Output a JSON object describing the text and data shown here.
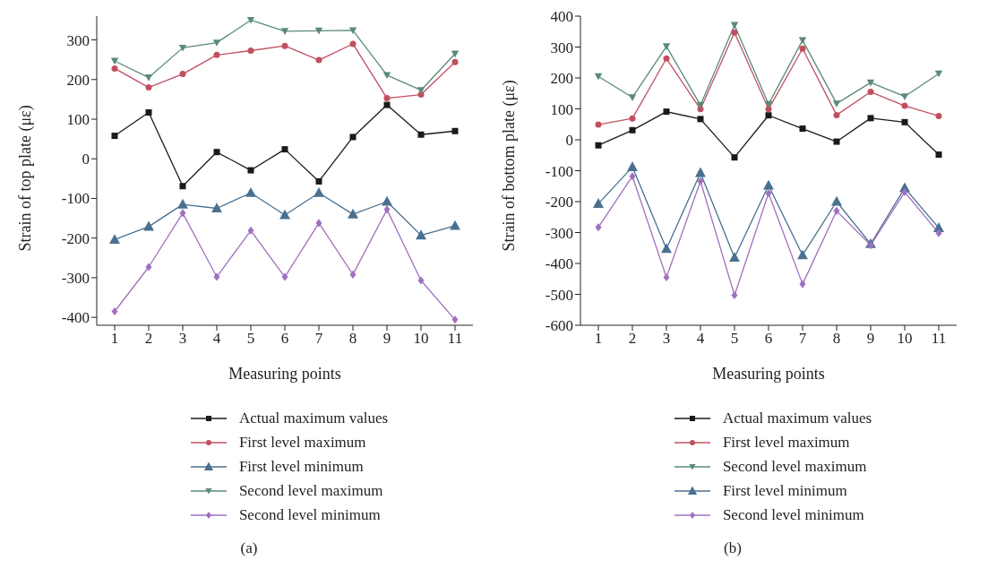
{
  "chart_data": [
    {
      "type": "line",
      "xlabel": "Measuring points",
      "ylabel": "Strain of top plate (με)",
      "categories": [
        "1",
        "2",
        "3",
        "4",
        "5",
        "6",
        "7",
        "8",
        "9",
        "10",
        "11"
      ],
      "ylim": [
        -420,
        360
      ],
      "yticks": [
        -400,
        -300,
        -200,
        -100,
        0,
        100,
        200,
        300
      ],
      "grid": false,
      "legend": "bottom",
      "annotations": [
        "(a)"
      ],
      "series": [
        {
          "name": "Actual maximum values",
          "color": "#1a1a1a",
          "marker": "square",
          "values": [
            58,
            117,
            -69,
            17,
            -29,
            24,
            -57,
            55,
            136,
            61,
            70
          ]
        },
        {
          "name": "First level maximum",
          "color": "#c0505f",
          "marker": "circle",
          "values": [
            228,
            180,
            214,
            262,
            273,
            285,
            249,
            290,
            153,
            162,
            244
          ]
        },
        {
          "name": "First level minimum",
          "color": "#4a7090",
          "marker": "triangle",
          "values": [
            -204,
            -171,
            -115,
            -125,
            -86,
            -142,
            -86,
            -140,
            -108,
            -193,
            -169
          ]
        },
        {
          "name": "Second level maximum",
          "color": "#5a8a78",
          "marker": "triangle-down",
          "values": [
            247,
            205,
            280,
            293,
            350,
            322,
            323,
            324,
            211,
            173,
            265
          ]
        },
        {
          "name": "Second level minimum",
          "color": "#a070c0",
          "marker": "diamond",
          "values": [
            -385,
            -273,
            -137,
            -298,
            -181,
            -298,
            -162,
            -292,
            -128,
            -307,
            -406
          ]
        }
      ]
    },
    {
      "type": "line",
      "xlabel": "Measuring points",
      "ylabel": "Strain of bottom plate (με)",
      "categories": [
        "1",
        "2",
        "3",
        "4",
        "5",
        "6",
        "7",
        "8",
        "9",
        "10",
        "11"
      ],
      "ylim": [
        -600,
        400
      ],
      "yticks": [
        -600,
        -500,
        -400,
        -300,
        -200,
        -100,
        0,
        100,
        200,
        300,
        400
      ],
      "grid": false,
      "legend": "bottom",
      "annotations": [
        "(b)"
      ],
      "series": [
        {
          "name": "Actual maximum values",
          "color": "#1a1a1a",
          "marker": "square",
          "values": [
            -18,
            31,
            91,
            67,
            -57,
            79,
            36,
            -6,
            70,
            57,
            -48
          ]
        },
        {
          "name": "First level maximum",
          "color": "#c0505f",
          "marker": "circle",
          "values": [
            49,
            69,
            263,
            99,
            347,
            99,
            295,
            80,
            155,
            110,
            77
          ]
        },
        {
          "name": "Second level maximum",
          "color": "#5a8a78",
          "marker": "triangle-down",
          "values": [
            205,
            137,
            302,
            112,
            371,
            115,
            322,
            117,
            185,
            140,
            214
          ]
        },
        {
          "name": "First level minimum",
          "color": "#4a7090",
          "marker": "triangle",
          "values": [
            -207,
            -88,
            -353,
            -107,
            -381,
            -148,
            -373,
            -200,
            -337,
            -156,
            -285
          ]
        },
        {
          "name": "Second level minimum",
          "color": "#a070c0",
          "marker": "diamond",
          "values": [
            -283,
            -118,
            -445,
            -134,
            -503,
            -173,
            -467,
            -230,
            -341,
            -169,
            -302
          ]
        }
      ]
    }
  ]
}
